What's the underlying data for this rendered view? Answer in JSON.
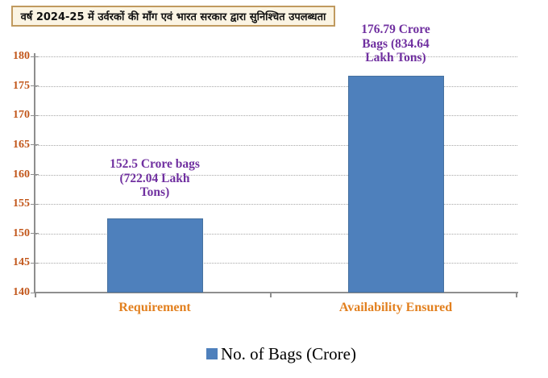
{
  "title": {
    "text": "वर्ष 2024-25 में उर्वरकों की माँग एवं भारत सरकार द्वारा सुनिश्चित उपलब्धता"
  },
  "legend": {
    "label": "No. of Bags (Crore)",
    "swatch_color": "#4E80BC"
  },
  "colors": {
    "bar": "#4E80BC",
    "data_label": "#7030A0",
    "y_tick_label": "#C2571B",
    "category_label": "#E2801F",
    "axis": "#8E8E8E",
    "gridline": "#A8A8A8",
    "title_box_border": "#C09A5F",
    "title_box_fill": "#FBF4E3"
  },
  "chart_data": {
    "type": "bar",
    "title": "वर्ष 2024-25 में उर्वरकों की माँग एवं भारत सरकार द्वारा सुनिश्चित उपलब्धता",
    "categories": [
      "Requirement",
      "Availability Ensured"
    ],
    "series": [
      {
        "name": "No. of Bags (Crore)",
        "values": [
          152.5,
          176.79
        ]
      }
    ],
    "data_labels": [
      "152.5 Crore bags\n(722.04 Lakh\nTons)",
      "176.79 Crore\nBags (834.64\nLakh Tons)"
    ],
    "xlabel": "",
    "ylabel": "",
    "ylim": [
      140,
      180
    ],
    "yticks": [
      140,
      145,
      150,
      155,
      160,
      165,
      170,
      175,
      180
    ],
    "grid": "horizontal-dotted",
    "legend_position": "bottom",
    "legend_entries": [
      "No. of Bags (Crore)"
    ]
  }
}
